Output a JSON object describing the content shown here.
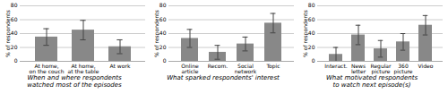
{
  "chart_data": [
    {
      "type": "bar",
      "title": "When and where respondents\nwatched most of the episodes",
      "categories": [
        "At home,\non the couch",
        "At home,\nat the table",
        "At work"
      ],
      "values": [
        35,
        45,
        21
      ],
      "errors": [
        12,
        14,
        10
      ],
      "ylabel": "% of respondents",
      "color": "#888888",
      "ylim": [
        0,
        80
      ],
      "yticks": [
        0,
        20,
        40,
        60,
        80
      ],
      "grid": true
    },
    {
      "type": "bar",
      "title": "What sparked respondents' interest",
      "categories": [
        "Online\narticle",
        "Recom.",
        "Social\nnetwork",
        "Topic"
      ],
      "values": [
        33,
        13,
        25,
        55
      ],
      "errors": [
        13,
        10,
        10,
        14
      ],
      "ylabel": "% of respondents",
      "color": "#888888",
      "ylim": [
        0,
        80
      ],
      "yticks": [
        0,
        20,
        40,
        60,
        80
      ],
      "grid": true
    },
    {
      "type": "bar",
      "title": "What motivated respondents\nto watch next episode(s)",
      "categories": [
        "Interact.",
        "News\nletter",
        "Regular\npicture",
        "360\npicture",
        "Video"
      ],
      "values": [
        10,
        38,
        18,
        28,
        52
      ],
      "errors": [
        10,
        14,
        12,
        12,
        14
      ],
      "ylabel": "% of respondents",
      "color": "#888888",
      "ylim": [
        0,
        80
      ],
      "yticks": [
        0,
        20,
        40,
        60,
        80
      ],
      "grid": true
    }
  ]
}
